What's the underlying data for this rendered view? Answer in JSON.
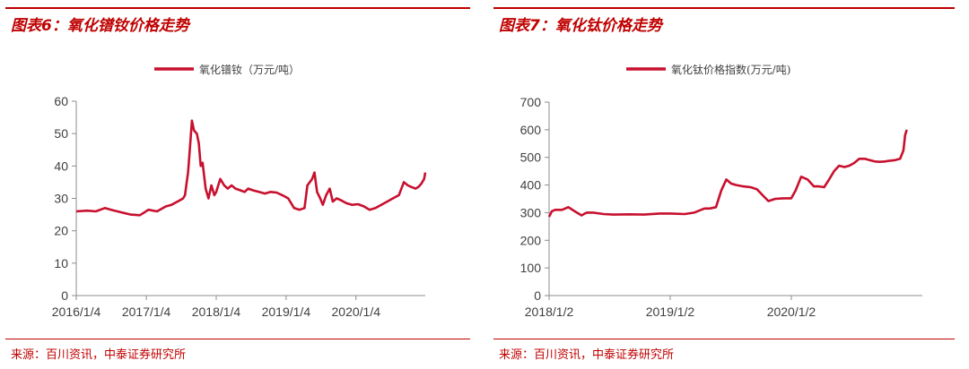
{
  "colors": {
    "accent": "#c00000",
    "series": "#c8102e",
    "axis": "#8c8c8c",
    "text": "#404040"
  },
  "panels": [
    {
      "title": "图表6：氧化镨钕价格走势",
      "source": "来源：百川资讯，中泰证券研究所",
      "chart_data": {
        "type": "line",
        "title": "",
        "xlabel": "",
        "ylabel": "",
        "ylim": [
          0,
          60
        ],
        "yticks": [
          "0",
          "10",
          "20",
          "30",
          "40",
          "50",
          "60"
        ],
        "x_range": [
          "2016/1/4",
          "2020/12/31"
        ],
        "xticks": [
          "2016/1/4",
          "2017/1/4",
          "2018/1/4",
          "2019/1/4",
          "2020/1/4"
        ],
        "legend": "top-center",
        "grid": false,
        "series": [
          {
            "name": "氧化镨钕（万元/吨）",
            "x": [
              "2016/1/4",
              "2016/3/1",
              "2016/4/15",
              "2016/6/1",
              "2016/7/15",
              "2016/9/1",
              "2016/10/15",
              "2016/12/1",
              "2016/12/20",
              "2017/1/15",
              "2017/3/1",
              "2017/4/15",
              "2017/5/15",
              "2017/6/15",
              "2017/7/1",
              "2017/7/15",
              "2017/7/25",
              "2017/8/3",
              "2017/8/10",
              "2017/8/20",
              "2017/8/30",
              "2017/9/10",
              "2017/9/25",
              "2017/10/5",
              "2017/10/15",
              "2017/10/25",
              "2017/11/10",
              "2017/11/25",
              "2017/12/10",
              "2017/12/25",
              "2018/1/4",
              "2018/1/25",
              "2018/2/15",
              "2018/3/5",
              "2018/3/25",
              "2018/4/15",
              "2018/5/10",
              "2018/6/1",
              "2018/6/20",
              "2018/7/15",
              "2018/8/15",
              "2018/9/15",
              "2018/10/15",
              "2018/11/15",
              "2018/12/15",
              "2019/1/15",
              "2019/2/15",
              "2019/3/15",
              "2019/4/10",
              "2019/4/25",
              "2019/5/20",
              "2019/6/1",
              "2019/6/15",
              "2019/7/1",
              "2019/7/15",
              "2019/8/1",
              "2019/8/20",
              "2019/9/5",
              "2019/9/25",
              "2019/10/15",
              "2019/11/15",
              "2019/12/15",
              "2020/1/15",
              "2020/2/15",
              "2020/3/15",
              "2020/4/15",
              "2020/5/15",
              "2020/6/15",
              "2020/7/15",
              "2020/8/15",
              "2020/9/10",
              "2020/10/1",
              "2020/10/20",
              "2020/11/10",
              "2020/11/25",
              "2020/12/10",
              "2020/12/25",
              "2020/12/31"
            ],
            "values": [
              26,
              26.2,
              26,
              27,
              26.3,
              25.6,
              25,
              24.8,
              25.5,
              26.5,
              26,
              27.5,
              28,
              29,
              29.5,
              30,
              31,
              35,
              38,
              46,
              54,
              51,
              50,
              47,
              40,
              41,
              33,
              30,
              34,
              31,
              32,
              36,
              34,
              33,
              34,
              33,
              32.5,
              32,
              33,
              32.5,
              32,
              31.5,
              32,
              31.8,
              31,
              30,
              27,
              26.5,
              27,
              34,
              36,
              38,
              32,
              30,
              28,
              31,
              33,
              29,
              30,
              29.5,
              28.5,
              28,
              28.2,
              27.5,
              26.5,
              27,
              28,
              29,
              30,
              31,
              35,
              34,
              33.5,
              33,
              33.5,
              34.5,
              36,
              38
            ]
          }
        ]
      }
    },
    {
      "title": "图表7：氧化钛价格走势",
      "source": "来源：百川资讯，中泰证券研究所",
      "chart_data": {
        "type": "line",
        "title": "",
        "xlabel": "",
        "ylabel": "",
        "ylim": [
          0,
          700
        ],
        "yticks": [
          "0",
          "100",
          "200",
          "300",
          "400",
          "500",
          "600",
          "700"
        ],
        "x_range": [
          "2018/1/2",
          "2021/1/31"
        ],
        "xticks": [
          "2018/1/2",
          "2019/1/2",
          "2020/1/2"
        ],
        "legend": "top-center",
        "grid": false,
        "series": [
          {
            "name": "氧化钛价格指数(万元/吨)",
            "x": [
              "2018/1/2",
              "2018/1/10",
              "2018/1/20",
              "2018/2/10",
              "2018/3/1",
              "2018/3/20",
              "2018/4/10",
              "2018/4/25",
              "2018/5/15",
              "2018/6/15",
              "2018/7/15",
              "2018/9/1",
              "2018/10/15",
              "2018/12/1",
              "2019/1/2",
              "2019/2/15",
              "2019/3/15",
              "2019/4/15",
              "2019/5/1",
              "2019/5/20",
              "2019/6/5",
              "2019/6/20",
              "2019/7/5",
              "2019/7/20",
              "2019/8/10",
              "2019/9/1",
              "2019/9/20",
              "2019/10/10",
              "2019/10/25",
              "2019/11/15",
              "2019/12/10",
              "2020/1/2",
              "2020/1/15",
              "2020/2/1",
              "2020/2/20",
              "2020/3/10",
              "2020/3/25",
              "2020/4/10",
              "2020/4/25",
              "2020/5/10",
              "2020/5/25",
              "2020/6/10",
              "2020/6/25",
              "2020/7/10",
              "2020/7/25",
              "2020/8/10",
              "2020/8/25",
              "2020/9/10",
              "2020/9/25",
              "2020/10/10",
              "2020/10/25",
              "2020/11/10",
              "2020/11/25",
              "2020/12/5",
              "2020/12/10",
              "2020/12/15"
            ],
            "values": [
              285,
              305,
              310,
              310,
              320,
              305,
              290,
              300,
              300,
              295,
              293,
              294,
              293,
              297,
              297,
              295,
              300,
              315,
              315,
              320,
              380,
              420,
              405,
              400,
              395,
              392,
              385,
              360,
              342,
              350,
              352,
              352,
              380,
              430,
              420,
              395,
              395,
              392,
              420,
              450,
              470,
              465,
              470,
              480,
              495,
              495,
              490,
              485,
              484,
              485,
              488,
              490,
              495,
              525,
              580,
              600
            ]
          }
        ]
      }
    }
  ]
}
